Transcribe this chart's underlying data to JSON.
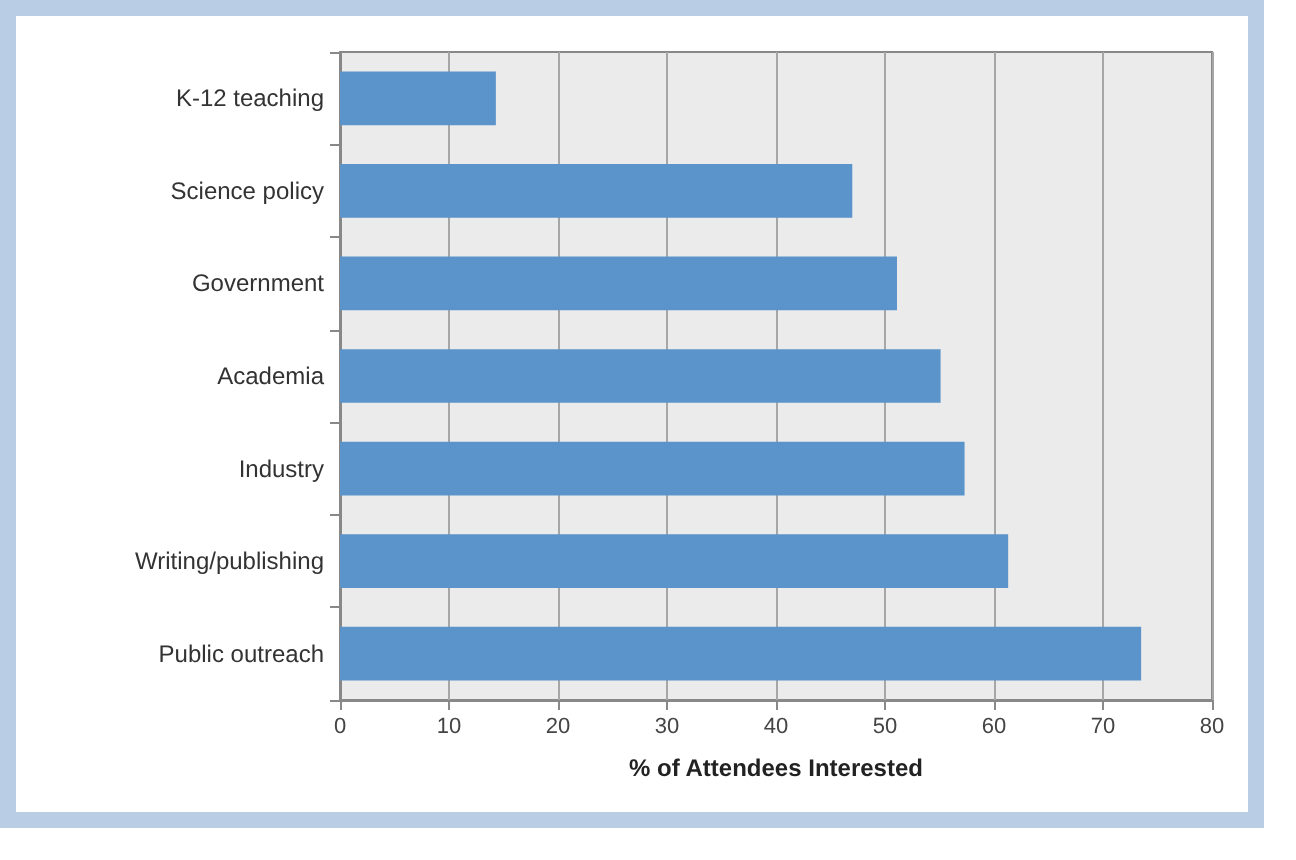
{
  "chart_data": {
    "type": "bar",
    "orientation": "horizontal",
    "xlabel": "% of Attendees Interested",
    "categories": [
      "K-12 teaching",
      "Science policy",
      "Government",
      "Academia",
      "Industry",
      "Writing/publishing",
      "Public outreach"
    ],
    "values": [
      14.3,
      47.0,
      51.1,
      55.1,
      57.3,
      61.3,
      73.5
    ],
    "color": "#5b93cb",
    "xlim": [
      0,
      80
    ],
    "xticks": [
      0,
      10,
      20,
      30,
      40,
      50,
      60,
      70,
      80
    ],
    "grid": "x"
  }
}
